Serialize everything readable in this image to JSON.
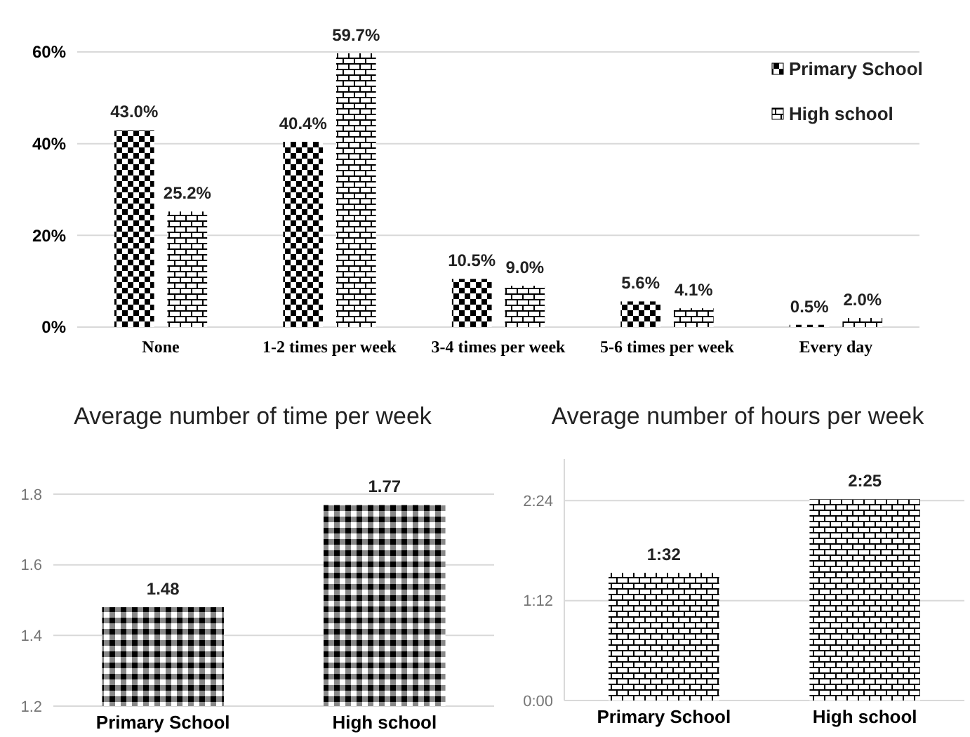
{
  "chart_data": [
    {
      "type": "bar",
      "categories": [
        "None",
        "1-2 times per week",
        "3-4 times per week",
        "5-6 times per week",
        "Every day"
      ],
      "series": [
        {
          "name": "Primary School",
          "color": "#000000",
          "values": [
            43.0,
            40.4,
            10.5,
            5.6,
            0.5
          ],
          "value_labels": [
            "43.0%",
            "40.4%",
            "10.5%",
            "5.6%",
            "0.5%"
          ]
        },
        {
          "name": "High school",
          "color": "#000000",
          "values": [
            25.2,
            59.7,
            9.0,
            4.1,
            2.0
          ],
          "value_labels": [
            "25.2%",
            "59.7%",
            "9.0%",
            "4.1%",
            "2.0%"
          ]
        }
      ],
      "ylim": [
        0,
        60
      ],
      "yticks": [
        {
          "value": 0,
          "label": "0%"
        },
        {
          "value": 20,
          "label": "20%"
        },
        {
          "value": 40,
          "label": "40%"
        },
        {
          "value": 60,
          "label": "60%"
        }
      ],
      "grid": "y",
      "legend": "top right"
    },
    {
      "type": "bar",
      "title": "Average number of time per week",
      "categories": [
        "Primary School",
        "High school"
      ],
      "series": [
        {
          "color": "#000000",
          "values": [
            1.48,
            1.77
          ]
        }
      ],
      "ylim": [
        1.2,
        1.8
      ],
      "yticks": [
        1.2,
        1.4,
        1.6,
        1.8
      ],
      "grid": "y",
      "data_labels": true
    },
    {
      "type": "bar",
      "title": "Average number of hours per week",
      "categories": [
        "Primary School",
        "High school"
      ],
      "series": [
        {
          "color": "#000000",
          "values": [
            1.5333,
            2.4167
          ],
          "value_labels": [
            "1:32",
            "2:25"
          ]
        }
      ],
      "ylim": [
        0,
        2.9
      ],
      "yticks": [
        {
          "value": 0,
          "label": "0:00"
        },
        {
          "value": 1.2,
          "label": "1:12"
        },
        {
          "value": 2.4,
          "label": "2:24"
        }
      ],
      "grid": "y"
    }
  ]
}
